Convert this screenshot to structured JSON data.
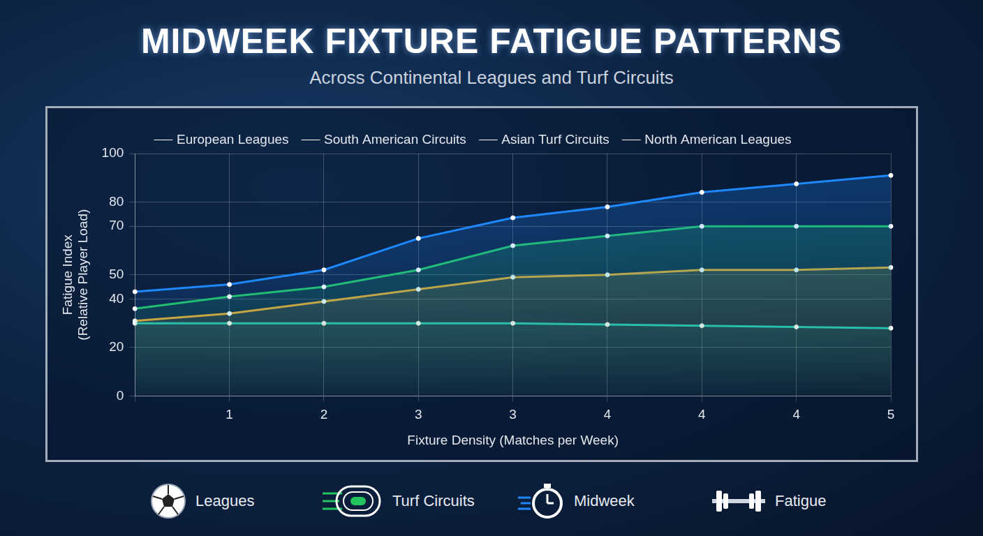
{
  "chart_data": {
    "type": "line",
    "title": "MIDWEEK FIXTURE FATIGUE PATTERNS",
    "subtitle": "Across Continental Leagues and Turf Circuits",
    "x_label": "Fixture Density (Matches per Week)",
    "y_label": "Fatigue Index (Relative Player Load)",
    "categories": [
      null,
      "1",
      "2",
      "3",
      "3",
      "4",
      "4",
      "4",
      "5"
    ],
    "series": [
      {
        "name": "European Leagues",
        "color": "#1e88ff",
        "values": [
          43,
          46,
          52,
          65,
          73.5,
          78,
          84,
          87.5,
          91
        ]
      },
      {
        "name": "South American Circuits",
        "color": "#22c55e",
        "values": [
          36,
          41,
          45,
          52,
          62,
          66,
          70,
          70,
          70
        ]
      },
      {
        "name": "Asian Turf Circuits",
        "color": "#f5a623",
        "values": [
          31,
          34,
          39,
          44,
          49,
          50,
          52,
          52,
          53
        ]
      },
      {
        "name": "North American Leagues",
        "color": "#14c8b8",
        "values": [
          30,
          30,
          30,
          30,
          30,
          29.5,
          29,
          28.5,
          28
        ]
      }
    ],
    "ylim": [
      0,
      100
    ],
    "yticks": [
      0,
      20,
      40,
      50,
      70,
      80,
      100
    ],
    "grid": true,
    "legend": "top",
    "marker": "circle",
    "annotations": [
      "Leagues",
      "Turf Circuits",
      "Midweek",
      "Fatigue"
    ]
  }
}
